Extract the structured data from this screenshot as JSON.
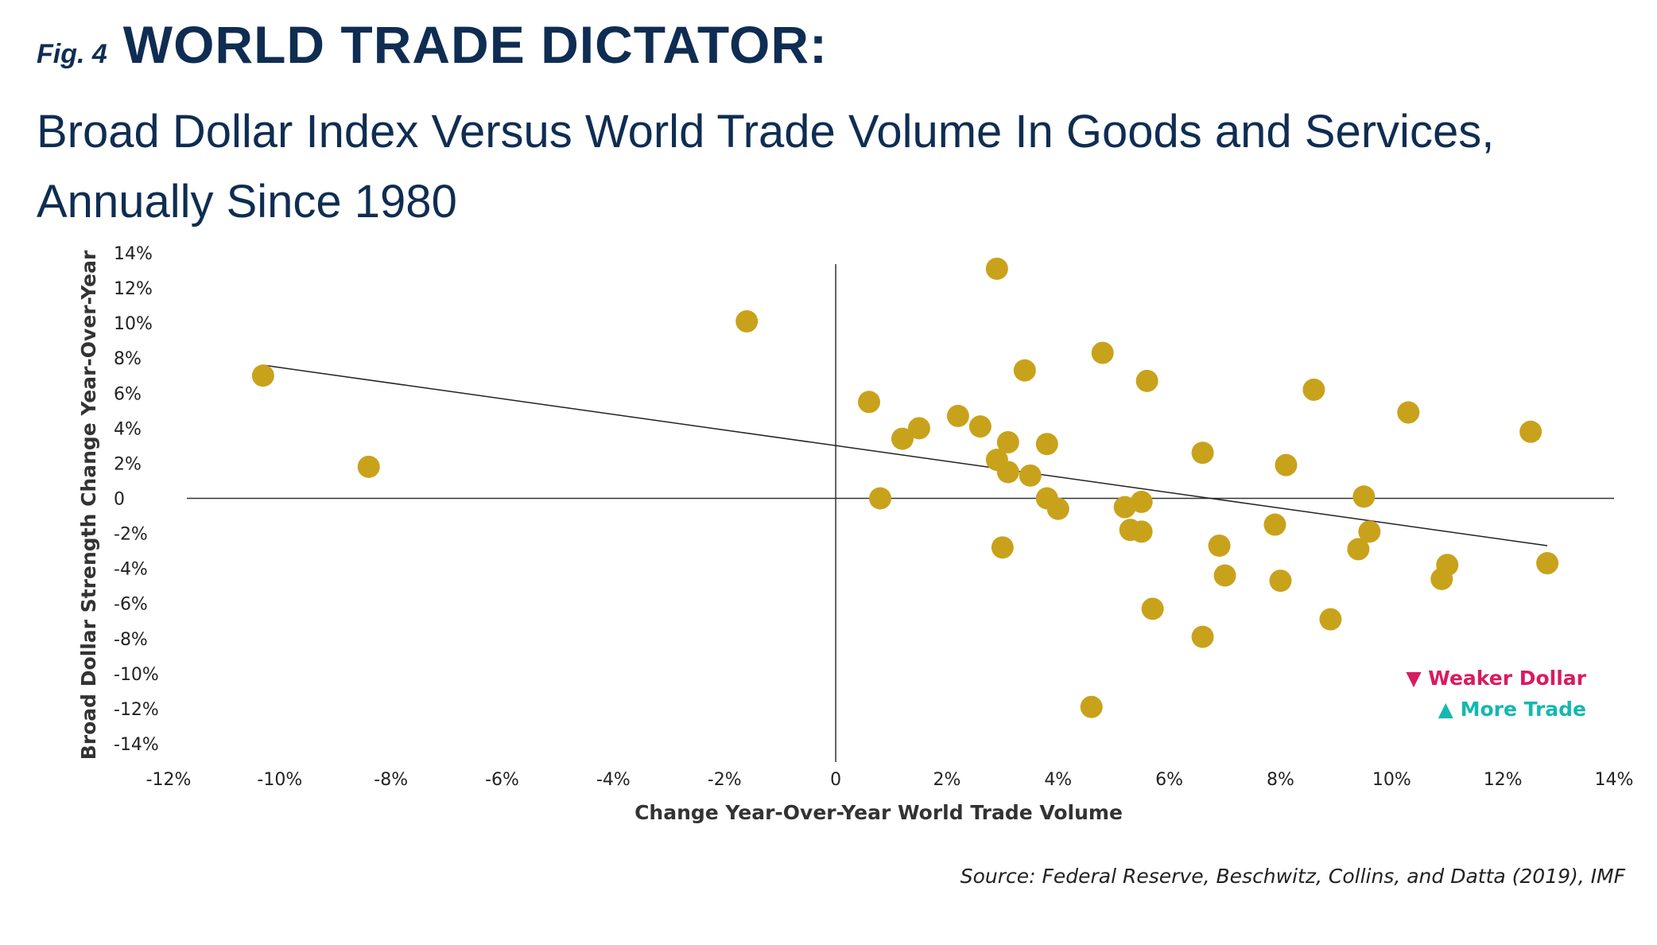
{
  "header": {
    "fig_label": "Fig. 4",
    "title": "WORLD TRADE DICTATOR:",
    "subtitle": "Broad Dollar Index Versus World Trade Volume In Goods and Services, Annually Since 1980"
  },
  "source": "Source: Federal Reserve, Beschwitz, Collins, and Datta (2019), IMF",
  "colors": {
    "title": "#0f2d52",
    "points": "#c9a21c",
    "weaker_dollar": "#d81b60",
    "more_trade": "#14b8b0",
    "axis": "#333333"
  },
  "chart_data": {
    "type": "scatter",
    "title": "WORLD TRADE DICTATOR:",
    "subtitle": "Broad Dollar Index Versus World Trade Volume In Goods and Services, Annually Since 1980",
    "xlabel": "Change Year-Over-Year World Trade Volume",
    "ylabel": "Broad Dollar Strength Change Year-Over-Year",
    "xlim": [
      -12,
      14
    ],
    "ylim": [
      -14,
      14
    ],
    "x_ticks": [
      -12,
      -10,
      -8,
      -6,
      -4,
      -2,
      0,
      2,
      4,
      6,
      8,
      10,
      12,
      14
    ],
    "x_tick_labels": [
      "-12%",
      "-10%",
      "-8%",
      "-6%",
      "-4%",
      "-2%",
      "0",
      "2%",
      "4%",
      "6%",
      "8%",
      "10%",
      "12%",
      "14%"
    ],
    "y_ticks": [
      14,
      12,
      10,
      8,
      6,
      4,
      2,
      0,
      -2,
      -4,
      -6,
      -8,
      -10,
      -12,
      -14
    ],
    "y_tick_labels": [
      "14%",
      "12%",
      "10%",
      "8%",
      "6%",
      "4%",
      "2%",
      "0",
      "-2%",
      "-4%",
      "-6%",
      "-8%",
      "-10%",
      "-12%",
      "-14%"
    ],
    "grid": false,
    "annotations": {
      "weaker_dollar": "▼ Weaker Dollar",
      "more_trade": "▲ More Trade"
    },
    "trendline": {
      "x": [
        -10.3,
        12.8
      ],
      "y": [
        7.6,
        -2.7
      ]
    },
    "points": [
      {
        "x": -10.3,
        "y": 7.0
      },
      {
        "x": -8.4,
        "y": 1.8
      },
      {
        "x": -1.6,
        "y": 10.1
      },
      {
        "x": 0.6,
        "y": 5.5
      },
      {
        "x": 0.8,
        "y": 0.0
      },
      {
        "x": 1.2,
        "y": 3.4
      },
      {
        "x": 1.5,
        "y": 4.0
      },
      {
        "x": 2.2,
        "y": 4.7
      },
      {
        "x": 2.6,
        "y": 4.1
      },
      {
        "x": 2.9,
        "y": 2.2
      },
      {
        "x": 2.9,
        "y": 13.1
      },
      {
        "x": 3.0,
        "y": -2.8
      },
      {
        "x": 3.1,
        "y": 1.5
      },
      {
        "x": 3.1,
        "y": 3.2
      },
      {
        "x": 3.4,
        "y": 7.3
      },
      {
        "x": 3.5,
        "y": 1.3
      },
      {
        "x": 3.8,
        "y": 3.1
      },
      {
        "x": 3.8,
        "y": 0.0
      },
      {
        "x": 4.0,
        "y": -0.6
      },
      {
        "x": 4.6,
        "y": -11.9
      },
      {
        "x": 4.8,
        "y": 8.3
      },
      {
        "x": 5.2,
        "y": -0.5
      },
      {
        "x": 5.3,
        "y": -1.8
      },
      {
        "x": 5.5,
        "y": -1.9
      },
      {
        "x": 5.5,
        "y": -0.2
      },
      {
        "x": 5.6,
        "y": 6.7
      },
      {
        "x": 5.7,
        "y": -6.3
      },
      {
        "x": 6.6,
        "y": 2.6
      },
      {
        "x": 6.6,
        "y": -7.9
      },
      {
        "x": 6.9,
        "y": -2.7
      },
      {
        "x": 7.0,
        "y": -4.4
      },
      {
        "x": 7.9,
        "y": -1.5
      },
      {
        "x": 8.0,
        "y": -4.7
      },
      {
        "x": 8.1,
        "y": 1.9
      },
      {
        "x": 8.6,
        "y": 6.2
      },
      {
        "x": 8.9,
        "y": -6.9
      },
      {
        "x": 9.4,
        "y": -2.9
      },
      {
        "x": 9.5,
        "y": 0.1
      },
      {
        "x": 9.6,
        "y": -1.9
      },
      {
        "x": 10.3,
        "y": 4.9
      },
      {
        "x": 10.9,
        "y": -4.6
      },
      {
        "x": 11.0,
        "y": -3.8
      },
      {
        "x": 12.5,
        "y": 3.8
      },
      {
        "x": 12.8,
        "y": -3.7
      }
    ]
  }
}
